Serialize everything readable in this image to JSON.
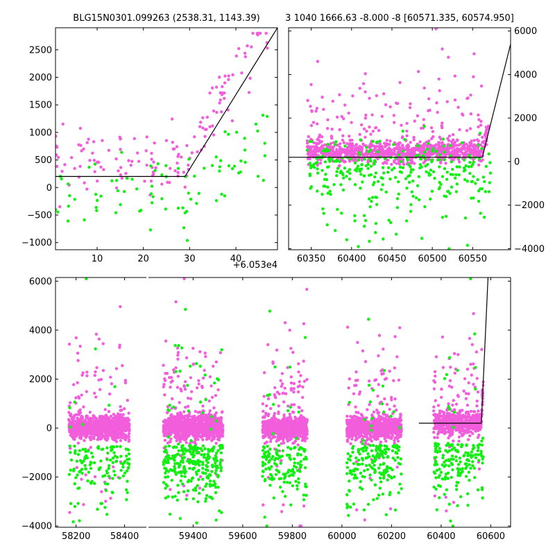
{
  "colors": {
    "pink": "#f25ddc",
    "green": "#11f011",
    "model": "#000000"
  },
  "chart_data": [
    {
      "type": "scatter",
      "title": "BLG15N0301.099263 (2538.31, 1143.39)",
      "xlim": [
        1,
        49
      ],
      "ylim": [
        -1130,
        2900
      ],
      "xticks": [
        10,
        20,
        30,
        40
      ],
      "yticks": [
        -1000,
        -500,
        0,
        500,
        1000,
        1500,
        2000,
        2500
      ],
      "x_offset_label": "+6.053e4",
      "y_axis_side": "left",
      "model_line": [
        [
          1,
          200
        ],
        [
          29,
          200
        ],
        [
          49,
          2900
        ]
      ]
    },
    {
      "type": "scatter",
      "title": "3 1040 1666.63 -8.000 -8 [60571.335, 60574.950]",
      "xlim": [
        60322,
        60597
      ],
      "ylim": [
        -4050,
        6150
      ],
      "xticks": [
        60350,
        60400,
        60450,
        60500,
        60550
      ],
      "yticks": [
        -4000,
        -2000,
        0,
        2000,
        4000,
        6000
      ],
      "y_axis_side": "right",
      "model_line": [
        [
          60322,
          200
        ],
        [
          60562,
          200
        ],
        [
          60597,
          5400
        ]
      ]
    },
    {
      "type": "scatter",
      "title": "",
      "segments": [
        {
          "xlim": [
            58115,
            58490
          ],
          "xticks": [
            58200,
            58400
          ]
        },
        {
          "xlim": [
            59220,
            60680
          ],
          "xticks": [
            59400,
            59600,
            59800,
            60000,
            60200,
            60400,
            60600
          ]
        }
      ],
      "ylim": [
        -4050,
        6150
      ],
      "yticks": [
        -4000,
        -2000,
        0,
        2000,
        4000,
        6000
      ],
      "y_axis_side": "left",
      "model_line": [
        [
          60310,
          200
        ],
        [
          60562,
          200
        ],
        [
          60589,
          6150
        ]
      ],
      "seasons": [
        {
          "start": 58170,
          "end": 58420,
          "pink": 900,
          "green": 140
        },
        {
          "start": 59280,
          "end": 59520,
          "pink": 1000,
          "green": 300
        },
        {
          "start": 59680,
          "end": 59860,
          "pink": 800,
          "green": 150
        },
        {
          "start": 60020,
          "end": 60240,
          "pink": 850,
          "green": 200
        },
        {
          "start": 60370,
          "end": 60570,
          "pink": 600,
          "green": 170
        }
      ]
    }
  ]
}
